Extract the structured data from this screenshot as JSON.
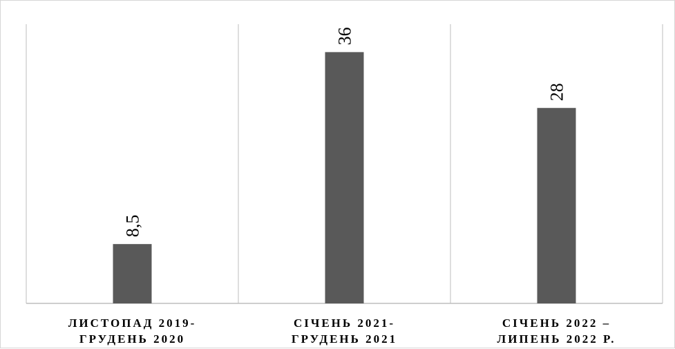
{
  "chart_data": {
    "type": "bar",
    "categories": [
      [
        "ЛИСТОПАД 2019-",
        "ГРУДЕНЬ 2020"
      ],
      [
        "СІЧЕНЬ 2021-",
        "ГРУДЕНЬ 2021"
      ],
      [
        "СІЧЕНЬ 2022 –",
        "ЛИПЕНЬ 2022 Р."
      ]
    ],
    "values": [
      8.5,
      36,
      28
    ],
    "data_labels": [
      "8,5",
      "36",
      "28"
    ],
    "ylim": [
      0,
      40
    ],
    "grid": "vertical separators",
    "legend": "none",
    "colors": {
      "bar": "#595959",
      "grid": "#d4d4d4",
      "text": "#000000"
    }
  }
}
